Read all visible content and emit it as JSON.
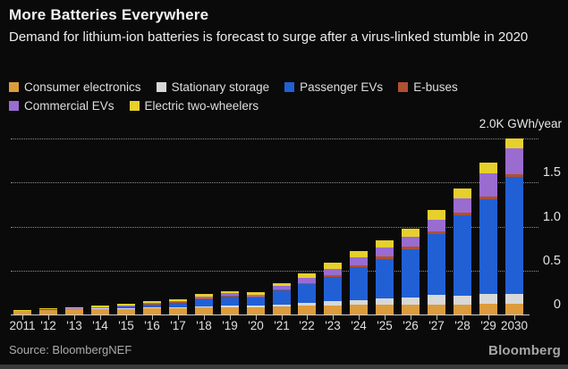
{
  "header": {
    "title": "More Batteries Everywhere",
    "subtitle": "Demand for lithium-ion batteries is forecast to surge after a virus-linked stumble in 2020"
  },
  "legend": [
    {
      "label": "Consumer electronics",
      "color": "#DD9C3C"
    },
    {
      "label": "Stationary storage",
      "color": "#D8D8D8"
    },
    {
      "label": "Passenger EVs",
      "color": "#2160D4"
    },
    {
      "label": "E-buses",
      "color": "#AE512F"
    },
    {
      "label": "Commercial EVs",
      "color": "#9A6CD0"
    },
    {
      "label": "Electric two-wheelers",
      "color": "#E6D02C"
    }
  ],
  "axis": {
    "unit_label": "2.0K GWh/year",
    "y_tick_labels": [
      "0",
      "0.5",
      "1.0",
      "1.5"
    ]
  },
  "source": "Source: BloombergNEF",
  "logo": "Bloomberg",
  "chart_data": {
    "type": "bar",
    "stacked": true,
    "title": "More Batteries Everywhere",
    "subtitle": "Demand for lithium-ion batteries is forecast to surge after a virus-linked stumble in 2020",
    "ylabel": "2.0K GWh/year",
    "ylim": [
      0,
      2.0
    ],
    "grid_values": [
      0.5,
      1.0,
      1.5,
      2.0
    ],
    "y_ticks": [
      {
        "value": 0,
        "label": "0"
      },
      {
        "value": 0.5,
        "label": "0.5"
      },
      {
        "value": 1.0,
        "label": "1.0"
      },
      {
        "value": 1.5,
        "label": "1.5"
      }
    ],
    "categories": [
      "2011",
      "2012",
      "2013",
      "2014",
      "2015",
      "2016",
      "2017",
      "2018",
      "2019",
      "2020",
      "2021",
      "2022",
      "2023",
      "2024",
      "2025",
      "2026",
      "2027",
      "2028",
      "2029",
      "2030"
    ],
    "x_tick_labels": [
      "2011",
      "'12",
      "'13",
      "'14",
      "'15",
      "'16",
      "'17",
      "'18",
      "'19",
      "'20",
      "'21",
      "'22",
      "'23",
      "'24",
      "'25",
      "'26",
      "'27",
      "'28",
      "'29",
      "2030"
    ],
    "series": [
      {
        "name": "Consumer electronics",
        "color": "#DD9C3C",
        "values": [
          0.05,
          0.055,
          0.06,
          0.065,
          0.07,
          0.072,
          0.072,
          0.08,
          0.085,
          0.082,
          0.09,
          0.1,
          0.105,
          0.11,
          0.11,
          0.115,
          0.11,
          0.115,
          0.12,
          0.12
        ]
      },
      {
        "name": "Stationary storage",
        "color": "#D8D8D8",
        "values": [
          0.0,
          0.0,
          0.0,
          0.002,
          0.003,
          0.005,
          0.008,
          0.015,
          0.02,
          0.018,
          0.025,
          0.035,
          0.045,
          0.055,
          0.07,
          0.08,
          0.11,
          0.1,
          0.118,
          0.11
        ]
      },
      {
        "name": "Passenger EVs",
        "color": "#2160D4",
        "values": [
          0.0,
          0.005,
          0.008,
          0.01,
          0.02,
          0.035,
          0.05,
          0.08,
          0.1,
          0.09,
          0.16,
          0.21,
          0.28,
          0.37,
          0.45,
          0.55,
          0.69,
          0.91,
          1.07,
          1.33
        ]
      },
      {
        "name": "E-buses",
        "color": "#AE512F",
        "values": [
          0.0,
          0.0,
          0.0,
          0.002,
          0.005,
          0.008,
          0.01,
          0.012,
          0.012,
          0.01,
          0.013,
          0.015,
          0.02,
          0.025,
          0.028,
          0.03,
          0.034,
          0.034,
          0.034,
          0.03
        ]
      },
      {
        "name": "Commercial EVs",
        "color": "#9A6CD0",
        "values": [
          0.0,
          0.0,
          0.002,
          0.003,
          0.005,
          0.01,
          0.012,
          0.02,
          0.025,
          0.025,
          0.04,
          0.055,
          0.07,
          0.085,
          0.1,
          0.11,
          0.135,
          0.158,
          0.264,
          0.3
        ]
      },
      {
        "name": "Electric two-wheelers",
        "color": "#E6D02C",
        "values": [
          0.005,
          0.008,
          0.01,
          0.018,
          0.02,
          0.025,
          0.022,
          0.025,
          0.025,
          0.025,
          0.027,
          0.05,
          0.065,
          0.075,
          0.082,
          0.09,
          0.108,
          0.118,
          0.118,
          0.11
        ]
      }
    ],
    "legend_position": "top",
    "grid": true,
    "totals_note": "approx totals K GWh/year: 0.06 (2011) rising to 2.0 (2030), with a dip in 2020 vs 2019"
  }
}
